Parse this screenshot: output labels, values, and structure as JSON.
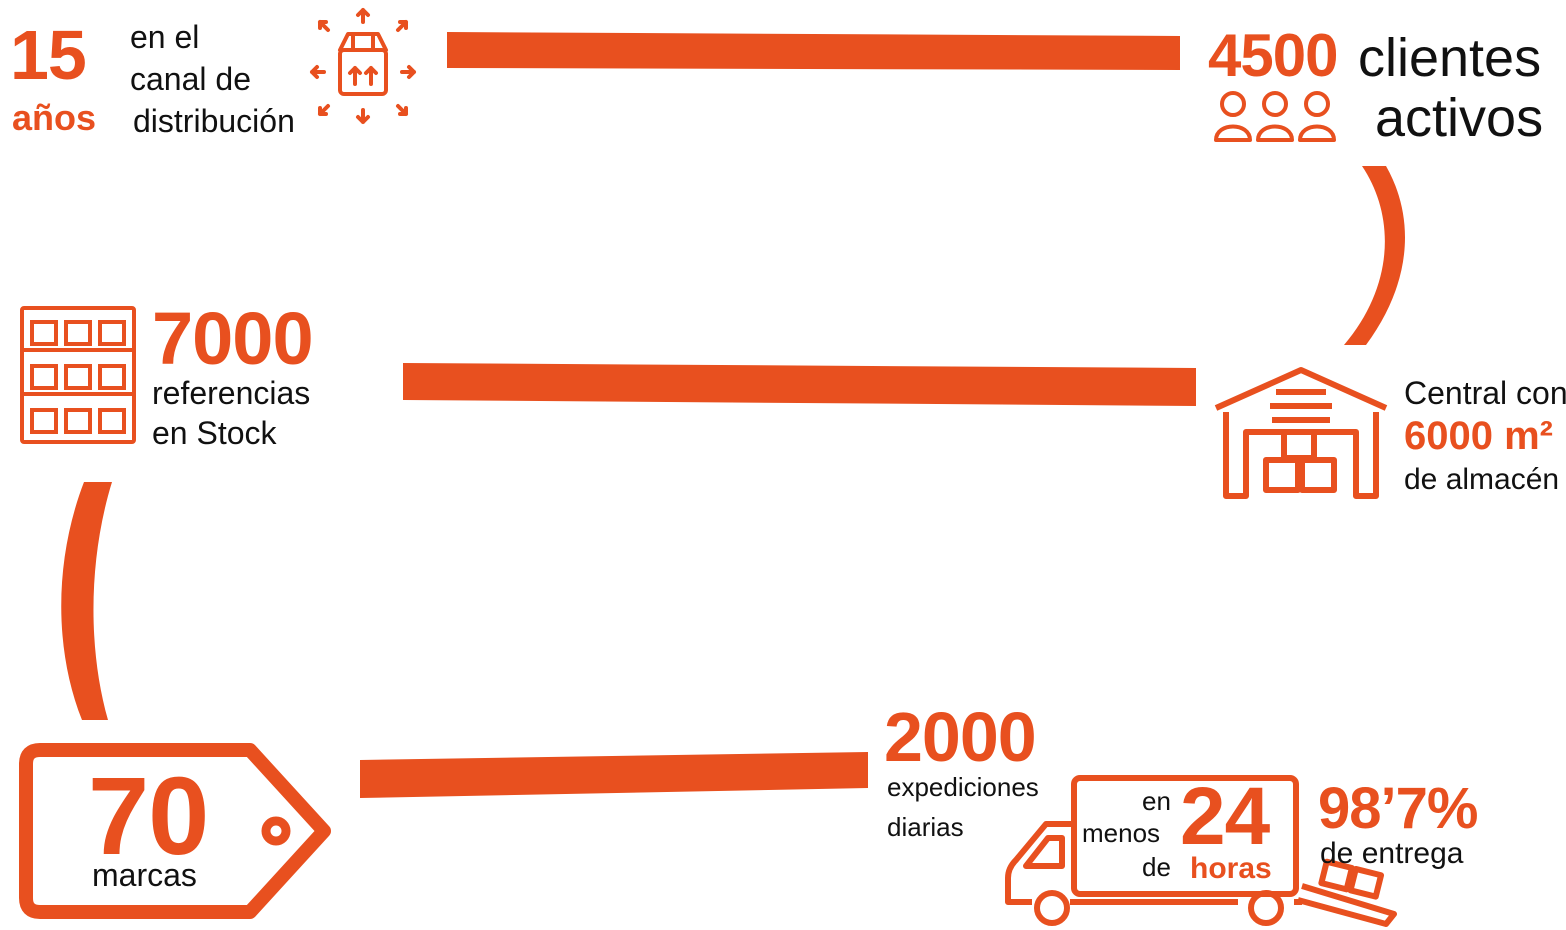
{
  "accent": "#e8501f",
  "stat_years": {
    "number": "15",
    "unit": "años",
    "label_line1": "en el",
    "label_line2": "canal de",
    "label_line3": "distribución",
    "icon": "box-distribution-icon"
  },
  "stat_clients": {
    "number": "4500",
    "label_line1": "clientes",
    "label_line2": "activos",
    "icon": "people-icon"
  },
  "stat_stock": {
    "number": "7000",
    "label_line1": "referencias",
    "label_line2": "en Stock",
    "icon": "shelves-icon"
  },
  "stat_warehouse": {
    "label_line1": "Central con",
    "number": "6000 m²",
    "label_line3": "de almacén",
    "icon": "warehouse-icon"
  },
  "stat_brands": {
    "number": "70",
    "label": "marcas",
    "icon": "price-tag-icon"
  },
  "stat_shipments": {
    "number": "2000",
    "label_line1": "expediciones",
    "label_line2": "diarias"
  },
  "stat_delivery": {
    "prefix_line1": "en",
    "prefix_line2": "menos",
    "prefix_line3": "de",
    "number": "24",
    "unit": "horas",
    "icon": "delivery-truck-icon"
  },
  "stat_rate": {
    "number": "98’7%",
    "label": "de entrega"
  }
}
